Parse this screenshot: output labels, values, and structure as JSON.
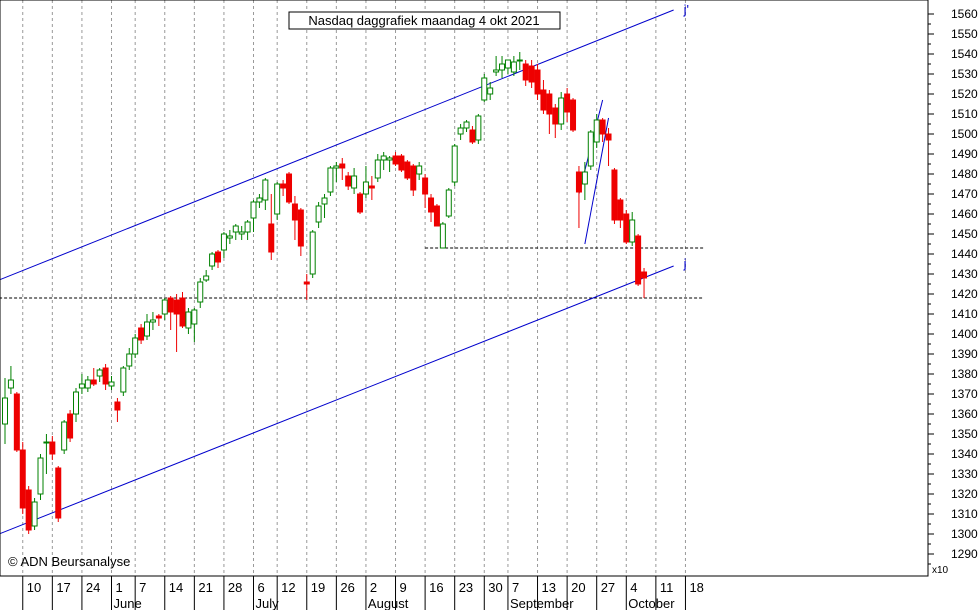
{
  "chart_data": {
    "type": "candlestick",
    "title": "Nasdaq daggrafiek maandag 4 okt 2021",
    "copyright": "© ADN Beursanalyse",
    "y_multiplier": "x10",
    "ylim": [
      1282,
      1565
    ],
    "y_ticks": [
      1290,
      1300,
      1310,
      1320,
      1330,
      1340,
      1350,
      1360,
      1370,
      1380,
      1390,
      1400,
      1410,
      1420,
      1430,
      1440,
      1450,
      1460,
      1470,
      1480,
      1490,
      1500,
      1510,
      1520,
      1530,
      1540,
      1550,
      1560
    ],
    "y_tick_labels": [
      "1290",
      "1300",
      "1310",
      "1320",
      "1330",
      "1340",
      "1350",
      "1360",
      "1370",
      "1380",
      "1390",
      "1400",
      "1410",
      "1420",
      "1430",
      "1440",
      "1450",
      "1460",
      "1470",
      "1480",
      "1490",
      "1500",
      "1510",
      "1520",
      "1530",
      "1540",
      "1550",
      "1560"
    ],
    "x_ticks": [
      {
        "day": "10",
        "month": "",
        "i": 3
      },
      {
        "day": "17",
        "month": "",
        "i": 8
      },
      {
        "day": "24",
        "month": "",
        "i": 13
      },
      {
        "day": "1",
        "month": "June",
        "i": 18
      },
      {
        "day": "7",
        "month": "",
        "i": 22
      },
      {
        "day": "14",
        "month": "",
        "i": 27
      },
      {
        "day": "21",
        "month": "",
        "i": 32
      },
      {
        "day": "28",
        "month": "",
        "i": 37
      },
      {
        "day": "6",
        "month": "July",
        "i": 42
      },
      {
        "day": "12",
        "month": "",
        "i": 46
      },
      {
        "day": "19",
        "month": "",
        "i": 51
      },
      {
        "day": "26",
        "month": "",
        "i": 56
      },
      {
        "day": "2",
        "month": "August",
        "i": 61
      },
      {
        "day": "9",
        "month": "",
        "i": 66
      },
      {
        "day": "16",
        "month": "",
        "i": 71
      },
      {
        "day": "23",
        "month": "",
        "i": 76
      },
      {
        "day": "30",
        "month": "",
        "i": 81
      },
      {
        "day": "7",
        "month": "September",
        "i": 85
      },
      {
        "day": "13",
        "month": "",
        "i": 90
      },
      {
        "day": "20",
        "month": "",
        "i": 95
      },
      {
        "day": "27",
        "month": "",
        "i": 100
      },
      {
        "day": "4",
        "month": "October",
        "i": 105
      },
      {
        "day": "11",
        "month": "",
        "i": 110
      },
      {
        "day": "18",
        "month": "",
        "i": 115
      }
    ],
    "candles": [
      {
        "o": 1355,
        "h": 1378,
        "l": 1345,
        "c": 1368
      },
      {
        "o": 1373,
        "h": 1384,
        "l": 1370,
        "c": 1377
      },
      {
        "o": 1370,
        "h": 1371,
        "l": 1341,
        "c": 1342
      },
      {
        "o": 1342,
        "h": 1346,
        "l": 1310,
        "c": 1313
      },
      {
        "o": 1322,
        "h": 1324,
        "l": 1300,
        "c": 1302
      },
      {
        "o": 1304,
        "h": 1318,
        "l": 1302,
        "c": 1316
      },
      {
        "o": 1320,
        "h": 1340,
        "l": 1317,
        "c": 1338
      },
      {
        "o": 1346,
        "h": 1350,
        "l": 1330,
        "c": 1346
      },
      {
        "o": 1346,
        "h": 1349,
        "l": 1337,
        "c": 1340
      },
      {
        "o": 1333,
        "h": 1334,
        "l": 1306,
        "c": 1308
      },
      {
        "o": 1342,
        "h": 1357,
        "l": 1340,
        "c": 1356
      },
      {
        "o": 1360,
        "h": 1362,
        "l": 1346,
        "c": 1348
      },
      {
        "o": 1360,
        "h": 1373,
        "l": 1356,
        "c": 1371
      },
      {
        "o": 1373,
        "h": 1380,
        "l": 1370,
        "c": 1375
      },
      {
        "o": 1373,
        "h": 1379,
        "l": 1371,
        "c": 1377
      },
      {
        "o": 1377,
        "h": 1383,
        "l": 1374,
        "c": 1375
      },
      {
        "o": 1379,
        "h": 1383,
        "l": 1376,
        "c": 1382
      },
      {
        "o": 1383,
        "h": 1385,
        "l": 1372,
        "c": 1375
      },
      {
        "o": 1374,
        "h": 1379,
        "l": 1372,
        "c": 1376
      },
      {
        "o": 1366,
        "h": 1368,
        "l": 1356,
        "c": 1362
      },
      {
        "o": 1371,
        "h": 1384,
        "l": 1369,
        "c": 1383
      },
      {
        "o": 1384,
        "h": 1393,
        "l": 1382,
        "c": 1390
      },
      {
        "o": 1390,
        "h": 1400,
        "l": 1388,
        "c": 1398
      },
      {
        "o": 1403,
        "h": 1405,
        "l": 1395,
        "c": 1397
      },
      {
        "o": 1399,
        "h": 1410,
        "l": 1397,
        "c": 1406
      },
      {
        "o": 1406,
        "h": 1411,
        "l": 1402,
        "c": 1407
      },
      {
        "o": 1409,
        "h": 1410,
        "l": 1404,
        "c": 1408
      },
      {
        "o": 1410,
        "h": 1418,
        "l": 1407,
        "c": 1417
      },
      {
        "o": 1418,
        "h": 1419,
        "l": 1402,
        "c": 1411
      },
      {
        "o": 1417,
        "h": 1420,
        "l": 1391,
        "c": 1410
      },
      {
        "o": 1418,
        "h": 1421,
        "l": 1403,
        "c": 1404
      },
      {
        "o": 1403,
        "h": 1413,
        "l": 1400,
        "c": 1411
      },
      {
        "o": 1405,
        "h": 1413,
        "l": 1396,
        "c": 1412
      },
      {
        "o": 1416,
        "h": 1428,
        "l": 1413,
        "c": 1426
      },
      {
        "o": 1427,
        "h": 1432,
        "l": 1426,
        "c": 1429
      },
      {
        "o": 1434,
        "h": 1441,
        "l": 1432,
        "c": 1440
      },
      {
        "o": 1441,
        "h": 1442,
        "l": 1433,
        "c": 1436
      },
      {
        "o": 1442,
        "h": 1451,
        "l": 1438,
        "c": 1450
      },
      {
        "o": 1448,
        "h": 1452,
        "l": 1445,
        "c": 1449
      },
      {
        "o": 1451,
        "h": 1455,
        "l": 1447,
        "c": 1454
      },
      {
        "o": 1450,
        "h": 1454,
        "l": 1447,
        "c": 1451
      },
      {
        "o": 1451,
        "h": 1457,
        "l": 1447,
        "c": 1456
      },
      {
        "o": 1458,
        "h": 1467,
        "l": 1451,
        "c": 1466
      },
      {
        "o": 1466,
        "h": 1470,
        "l": 1463,
        "c": 1468
      },
      {
        "o": 1467,
        "h": 1478,
        "l": 1462,
        "c": 1477
      },
      {
        "o": 1455,
        "h": 1470,
        "l": 1437,
        "c": 1441
      },
      {
        "o": 1460,
        "h": 1476,
        "l": 1457,
        "c": 1475
      },
      {
        "o": 1475,
        "h": 1477,
        "l": 1469,
        "c": 1473
      },
      {
        "o": 1480,
        "h": 1481,
        "l": 1465,
        "c": 1466
      },
      {
        "o": 1465,
        "h": 1469,
        "l": 1447,
        "c": 1457
      },
      {
        "o": 1462,
        "h": 1463,
        "l": 1439,
        "c": 1444
      },
      {
        "o": 1426,
        "h": 1430,
        "l": 1417,
        "c": 1425
      },
      {
        "o": 1430,
        "h": 1452,
        "l": 1428,
        "c": 1451
      },
      {
        "o": 1456,
        "h": 1466,
        "l": 1453,
        "c": 1464
      },
      {
        "o": 1465,
        "h": 1470,
        "l": 1458,
        "c": 1468
      },
      {
        "o": 1471,
        "h": 1484,
        "l": 1469,
        "c": 1483
      },
      {
        "o": 1483,
        "h": 1486,
        "l": 1476,
        "c": 1484
      },
      {
        "o": 1485,
        "h": 1488,
        "l": 1477,
        "c": 1483
      },
      {
        "o": 1479,
        "h": 1481,
        "l": 1472,
        "c": 1474
      },
      {
        "o": 1473,
        "h": 1483,
        "l": 1470,
        "c": 1479
      },
      {
        "o": 1470,
        "h": 1471,
        "l": 1460,
        "c": 1461
      },
      {
        "o": 1470,
        "h": 1484,
        "l": 1468,
        "c": 1476
      },
      {
        "o": 1474,
        "h": 1479,
        "l": 1467,
        "c": 1473
      },
      {
        "o": 1478,
        "h": 1490,
        "l": 1476,
        "c": 1487
      },
      {
        "o": 1487,
        "h": 1491,
        "l": 1482,
        "c": 1489
      },
      {
        "o": 1487,
        "h": 1489,
        "l": 1481,
        "c": 1488
      },
      {
        "o": 1489,
        "h": 1491,
        "l": 1484,
        "c": 1485
      },
      {
        "o": 1489,
        "h": 1490,
        "l": 1481,
        "c": 1482
      },
      {
        "o": 1486,
        "h": 1487,
        "l": 1477,
        "c": 1478
      },
      {
        "o": 1484,
        "h": 1485,
        "l": 1469,
        "c": 1472
      },
      {
        "o": 1480,
        "h": 1486,
        "l": 1477,
        "c": 1484
      },
      {
        "o": 1478,
        "h": 1480,
        "l": 1463,
        "c": 1470
      },
      {
        "o": 1468,
        "h": 1470,
        "l": 1456,
        "c": 1461
      },
      {
        "o": 1464,
        "h": 1465,
        "l": 1454,
        "c": 1454
      },
      {
        "o": 1443,
        "h": 1456,
        "l": 1443,
        "c": 1455
      },
      {
        "o": 1459,
        "h": 1473,
        "l": 1458,
        "c": 1472
      },
      {
        "o": 1476,
        "h": 1495,
        "l": 1474,
        "c": 1494
      },
      {
        "o": 1500,
        "h": 1505,
        "l": 1497,
        "c": 1503
      },
      {
        "o": 1503,
        "h": 1507,
        "l": 1501,
        "c": 1506
      },
      {
        "o": 1502,
        "h": 1504,
        "l": 1495,
        "c": 1496
      },
      {
        "o": 1497,
        "h": 1510,
        "l": 1495,
        "c": 1509
      },
      {
        "o": 1517,
        "h": 1530,
        "l": 1516,
        "c": 1528
      },
      {
        "o": 1520,
        "h": 1526,
        "l": 1517,
        "c": 1523
      },
      {
        "o": 1531,
        "h": 1539,
        "l": 1529,
        "c": 1532
      },
      {
        "o": 1532,
        "h": 1539,
        "l": 1528,
        "c": 1535
      },
      {
        "o": 1533,
        "h": 1537,
        "l": 1530,
        "c": 1537
      },
      {
        "o": 1531,
        "h": 1539,
        "l": 1529,
        "c": 1536
      },
      {
        "o": 1537,
        "h": 1541,
        "l": 1532,
        "c": 1537
      },
      {
        "o": 1535,
        "h": 1537,
        "l": 1524,
        "c": 1527
      },
      {
        "o": 1534,
        "h": 1537,
        "l": 1523,
        "c": 1526
      },
      {
        "o": 1532,
        "h": 1535,
        "l": 1517,
        "c": 1520
      },
      {
        "o": 1522,
        "h": 1527,
        "l": 1510,
        "c": 1512
      },
      {
        "o": 1520,
        "h": 1522,
        "l": 1500,
        "c": 1510
      },
      {
        "o": 1513,
        "h": 1515,
        "l": 1498,
        "c": 1505
      },
      {
        "o": 1505,
        "h": 1521,
        "l": 1502,
        "c": 1518
      },
      {
        "o": 1520,
        "h": 1523,
        "l": 1506,
        "c": 1511
      },
      {
        "o": 1517,
        "h": 1518,
        "l": 1501,
        "c": 1502
      },
      {
        "o": 1481,
        "h": 1484,
        "l": 1453,
        "c": 1471
      },
      {
        "o": 1475,
        "h": 1486,
        "l": 1467,
        "c": 1481
      },
      {
        "o": 1484,
        "h": 1502,
        "l": 1482,
        "c": 1501
      },
      {
        "o": 1496,
        "h": 1510,
        "l": 1493,
        "c": 1507
      },
      {
        "o": 1507,
        "h": 1508,
        "l": 1496,
        "c": 1500
      },
      {
        "o": 1500,
        "h": 1503,
        "l": 1484,
        "c": 1497
      },
      {
        "o": 1482,
        "h": 1483,
        "l": 1455,
        "c": 1457
      },
      {
        "o": 1467,
        "h": 1468,
        "l": 1453,
        "c": 1457
      },
      {
        "o": 1460,
        "h": 1462,
        "l": 1445,
        "c": 1446
      },
      {
        "o": 1446,
        "h": 1461,
        "l": 1444,
        "c": 1457
      },
      {
        "o": 1449,
        "h": 1450,
        "l": 1424,
        "c": 1425
      },
      {
        "o": 1431,
        "h": 1433,
        "l": 1418,
        "c": 1428
      }
    ],
    "trendlines": [
      {
        "label": "j'",
        "from": {
          "i": -1,
          "y": 1427
        },
        "to": {
          "i": 113,
          "y": 1562
        }
      },
      {
        "label": "j",
        "from": {
          "i": -1,
          "y": 1300
        },
        "to": {
          "i": 113,
          "y": 1434
        }
      },
      {
        "label": "",
        "from": {
          "i": 97,
          "y": 1470
        },
        "to": {
          "i": 101,
          "y": 1517
        }
      },
      {
        "label": "",
        "from": {
          "i": 98,
          "y": 1445
        },
        "to": {
          "i": 102,
          "y": 1508
        }
      }
    ],
    "hlines": [
      {
        "y": 1443,
        "from_i": 71,
        "to_i": 118
      },
      {
        "y": 1418,
        "from_i": -1,
        "to_i": 118
      }
    ],
    "colors": {
      "up": "#ffffff",
      "down": "#ee0000",
      "up_outline": "#008000",
      "trend": "#0000cc",
      "grid": "#999999"
    }
  }
}
